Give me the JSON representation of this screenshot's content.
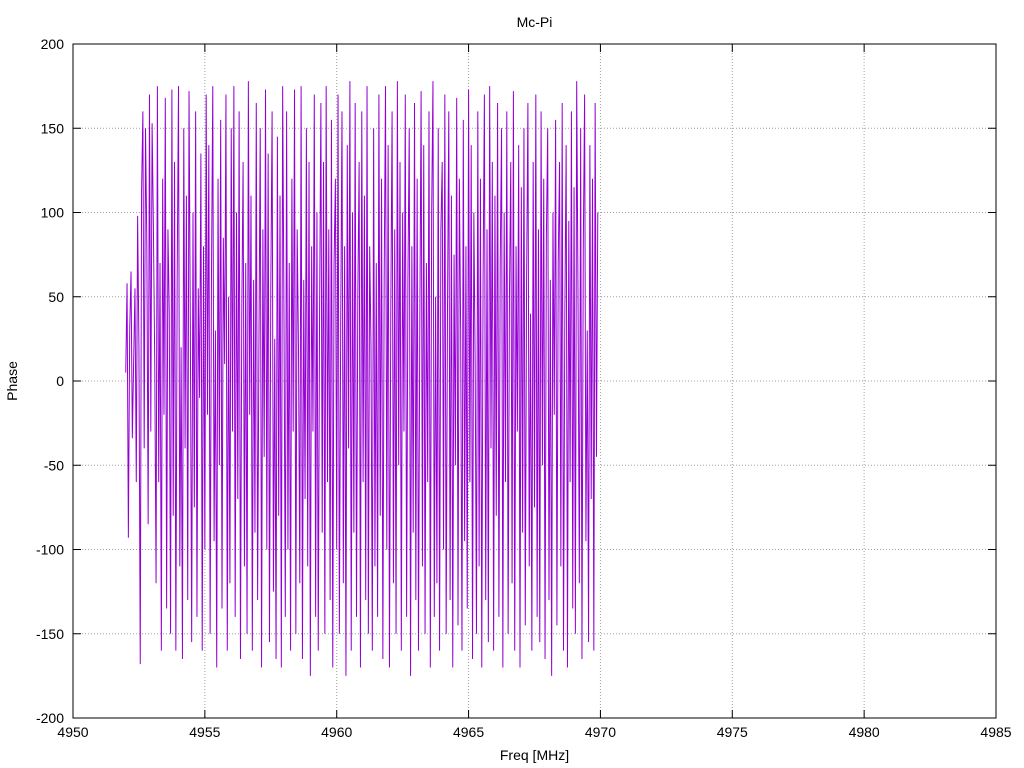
{
  "chart_data": {
    "type": "line",
    "title": "Mc-Pi",
    "xlabel": "Freq [MHz]",
    "ylabel": "Phase",
    "xlim": [
      4950,
      4985
    ],
    "ylim": [
      -200,
      200
    ],
    "x_ticks": [
      4950,
      4955,
      4960,
      4965,
      4970,
      4975,
      4980,
      4985
    ],
    "y_ticks": [
      -200,
      -150,
      -100,
      -50,
      0,
      50,
      100,
      150,
      200
    ],
    "x_tick_labels": [
      "4950",
      "4955",
      "4960",
      "4965",
      "4970",
      "4975",
      "4980",
      "4985"
    ],
    "y_tick_labels": [
      "-200",
      "-150",
      "-100",
      "-50",
      "0",
      "50",
      "100",
      "150",
      "200"
    ],
    "grid": true,
    "legend": "none",
    "series_color": "#9400d3",
    "series": [
      {
        "x_start": 4952.0,
        "x_step": 0.05,
        "values": [
          5,
          58,
          -93,
          30,
          65,
          -34,
          12,
          55,
          -60,
          98,
          20,
          -168,
          113,
          160,
          -40,
          150,
          80,
          -85,
          170,
          -30,
          153,
          90,
          10,
          -120,
          175,
          -60,
          70,
          -160,
          120,
          -20,
          168,
          -135,
          90,
          40,
          -150,
          173,
          -80,
          130,
          -160,
          60,
          175,
          -110,
          20,
          -165,
          150,
          -40,
          110,
          -130,
          172,
          30,
          -155,
          100,
          -75,
          160,
          -140,
          55,
          -10,
          135,
          -160,
          80,
          -100,
          170,
          -20,
          140,
          -150,
          60,
          175,
          -95,
          30,
          -170,
          120,
          -50,
          155,
          -135,
          85,
          10,
          170,
          -160,
          50,
          -120,
          150,
          -30,
          175,
          -140,
          100,
          -70,
          160,
          -165,
          40,
          130,
          -110,
          70,
          -150,
          178,
          -20,
          110,
          -160,
          60,
          -90,
          165,
          -130,
          20,
          150,
          -170,
          90,
          -45,
          173,
          -100,
          135,
          -155,
          55,
          160,
          -125,
          25,
          -165,
          145,
          -80,
          110,
          -170,
          175,
          40,
          -140,
          160,
          -100,
          70,
          -160,
          120,
          -30,
          173,
          -150,
          90,
          20,
          -120,
          175,
          -165,
          60,
          -70,
          150,
          -110,
          130,
          -175,
          80,
          -30,
          170,
          -140,
          100,
          -160,
          40,
          165,
          -90,
          130,
          -150,
          175,
          -60,
          90,
          -130,
          155,
          -170,
          70,
          120,
          -100,
          170,
          -150,
          30,
          160,
          -120,
          80,
          -175,
          140,
          -40,
          178,
          -160,
          100,
          -90,
          165,
          -140,
          50,
          130,
          -170,
          160,
          -60,
          110,
          -130,
          175,
          -150,
          80,
          20,
          -160,
          150,
          -110,
          70,
          -140,
          170,
          -80,
          120,
          -165,
          60,
          175,
          -100,
          140,
          -170,
          40,
          160,
          -120,
          90,
          -150,
          178,
          -50,
          130,
          -160,
          100,
          -30,
          170,
          -140,
          60,
          150,
          -175,
          80,
          -90,
          165,
          -130,
          120,
          -160,
          30,
          172,
          -110,
          140,
          -150,
          70,
          -60,
          160,
          -170,
          100,
          178,
          -140,
          50,
          -120,
          150,
          -160,
          90,
          130,
          -100,
          170,
          -150,
          40,
          160,
          -130,
          110,
          -170,
          75,
          -50,
          168,
          -145,
          120,
          30,
          -160,
          155,
          -95,
          80,
          -135,
          173,
          -60,
          140,
          -165,
          100,
          10,
          -150,
          160,
          -110,
          120,
          -170,
          60,
          170,
          -130,
          90,
          -155,
          175,
          -40,
          130,
          -160,
          110,
          -80,
          165,
          -140,
          70,
          150,
          -170,
          100,
          -60,
          160,
          -150,
          50,
          130,
          -120,
          172,
          -160,
          80,
          -30,
          140,
          -170,
          115,
          -90,
          150,
          -145,
          60,
          165,
          -110,
          40,
          -160,
          130,
          -75,
          170,
          -140,
          90,
          -155,
          160,
          -50,
          120,
          -165,
          85,
          150,
          -130,
          60,
          -175,
          100,
          -20,
          155,
          -145,
          70,
          130,
          -110,
          165,
          -160,
          40,
          140,
          -170,
          95,
          -60,
          160,
          -135,
          115,
          -150,
          178,
          50,
          -120,
          150,
          -165,
          80,
          170,
          -95,
          30,
          -155,
          140,
          -70,
          120,
          -160,
          165,
          -45,
          100
        ]
      }
    ]
  }
}
